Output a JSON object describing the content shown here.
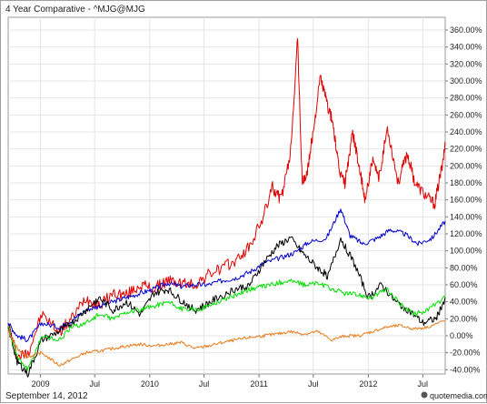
{
  "chart_data": {
    "type": "line",
    "title": "4 Year Comparative - ^MJG@MJG",
    "date_footer": "September 14, 2012",
    "branding": "quotemedia.com",
    "xlabel": "",
    "ylabel": "",
    "x_ticks": [
      "2009",
      "Jul",
      "2010",
      "Jul",
      "2011",
      "Jul",
      "2012",
      "Jul"
    ],
    "y_ticks": [
      "360.00%",
      "340.00%",
      "320.00%",
      "300.00%",
      "280.00%",
      "260.00%",
      "240.00%",
      "220.00%",
      "200.00%",
      "180.00%",
      "160.00%",
      "140.00%",
      "120.00%",
      "100.00%",
      "80.00%",
      "60.00%",
      "40.00%",
      "20.00%",
      "0.00%",
      "-20.00%",
      "-40.00%"
    ],
    "ylim": [
      -45,
      375
    ],
    "xlim": [
      "2008-09-15",
      "2012-09-14"
    ],
    "grid": true,
    "series": [
      {
        "color": "#e00000",
        "x": [
          "2008-09-15",
          "2008-10-15",
          "2008-11-20",
          "2009-01-05",
          "2009-03-05",
          "2009-04-15",
          "2009-06-01",
          "2009-07-15",
          "2009-09-01",
          "2009-10-15",
          "2009-12-01",
          "2010-01-15",
          "2010-03-01",
          "2010-04-15",
          "2010-06-01",
          "2010-07-15",
          "2010-09-01",
          "2010-10-15",
          "2010-12-01",
          "2011-01-15",
          "2011-02-15",
          "2011-03-15",
          "2011-04-15",
          "2011-05-10",
          "2011-05-25",
          "2011-06-10",
          "2011-07-01",
          "2011-07-25",
          "2011-08-15",
          "2011-09-05",
          "2011-09-25",
          "2011-10-15",
          "2011-11-10",
          "2011-12-01",
          "2011-12-20",
          "2012-01-15",
          "2012-02-05",
          "2012-03-05",
          "2012-04-10",
          "2012-05-10",
          "2012-06-05",
          "2012-07-10",
          "2012-08-10",
          "2012-09-01",
          "2012-09-14"
        ],
        "y": [
          15,
          -25,
          -20,
          25,
          5,
          20,
          45,
          35,
          50,
          48,
          60,
          55,
          65,
          62,
          60,
          72,
          80,
          88,
          105,
          140,
          175,
          160,
          210,
          350,
          180,
          190,
          240,
          305,
          275,
          250,
          195,
          180,
          240,
          200,
          160,
          205,
          185,
          245,
          180,
          215,
          180,
          165,
          155,
          195,
          225
        ]
      },
      {
        "color": "#0000cc",
        "x": [
          "2008-09-15",
          "2008-10-15",
          "2008-11-20",
          "2009-01-05",
          "2009-03-05",
          "2009-04-15",
          "2009-06-01",
          "2009-07-15",
          "2009-09-01",
          "2009-10-15",
          "2009-12-01",
          "2010-01-15",
          "2010-03-01",
          "2010-04-15",
          "2010-06-01",
          "2010-07-15",
          "2010-09-01",
          "2010-10-15",
          "2010-12-01",
          "2011-01-15",
          "2011-03-15",
          "2011-05-01",
          "2011-06-15",
          "2011-08-15",
          "2011-10-01",
          "2011-11-01",
          "2011-12-15",
          "2012-02-01",
          "2012-03-15",
          "2012-05-01",
          "2012-06-15",
          "2012-08-01",
          "2012-09-14"
        ],
        "y": [
          15,
          0,
          -5,
          15,
          10,
          18,
          30,
          35,
          40,
          45,
          50,
          55,
          62,
          58,
          60,
          60,
          65,
          68,
          75,
          85,
          92,
          98,
          110,
          115,
          150,
          118,
          108,
          115,
          125,
          120,
          108,
          115,
          135
        ]
      },
      {
        "color": "#000000",
        "x": [
          "2008-09-15",
          "2008-10-15",
          "2008-11-20",
          "2009-01-05",
          "2009-03-05",
          "2009-04-15",
          "2009-06-01",
          "2009-07-15",
          "2009-09-01",
          "2009-10-15",
          "2009-12-01",
          "2010-01-15",
          "2010-03-01",
          "2010-04-15",
          "2010-06-01",
          "2010-07-15",
          "2010-09-01",
          "2010-10-15",
          "2010-12-01",
          "2011-01-15",
          "2011-03-01",
          "2011-04-15",
          "2011-06-01",
          "2011-07-15",
          "2011-08-20",
          "2011-10-01",
          "2011-11-15",
          "2012-01-01",
          "2012-02-15",
          "2012-04-01",
          "2012-05-15",
          "2012-07-01",
          "2012-08-15",
          "2012-09-14"
        ],
        "y": [
          10,
          -30,
          -45,
          -5,
          5,
          15,
          30,
          45,
          30,
          40,
          25,
          50,
          55,
          42,
          30,
          38,
          48,
          55,
          60,
          85,
          105,
          115,
          95,
          80,
          70,
          115,
          85,
          45,
          60,
          40,
          30,
          15,
          20,
          45
        ]
      },
      {
        "color": "#00dd00",
        "x": [
          "2008-09-15",
          "2008-10-15",
          "2008-11-20",
          "2009-01-05",
          "2009-03-05",
          "2009-04-15",
          "2009-06-01",
          "2009-07-15",
          "2009-09-01",
          "2009-10-15",
          "2009-12-01",
          "2010-01-15",
          "2010-03-01",
          "2010-04-15",
          "2010-06-01",
          "2010-07-15",
          "2010-09-01",
          "2010-10-15",
          "2010-12-01",
          "2011-01-15",
          "2011-03-01",
          "2011-04-15",
          "2011-06-01",
          "2011-07-15",
          "2011-09-01",
          "2011-10-15",
          "2011-12-01",
          "2012-01-15",
          "2012-03-01",
          "2012-04-15",
          "2012-06-01",
          "2012-07-15",
          "2012-09-14"
        ],
        "y": [
          12,
          -25,
          -40,
          0,
          -5,
          10,
          15,
          25,
          20,
          28,
          30,
          35,
          40,
          32,
          30,
          35,
          42,
          48,
          55,
          58,
          62,
          65,
          60,
          62,
          55,
          50,
          48,
          45,
          55,
          38,
          25,
          30,
          45
        ]
      },
      {
        "color": "#e87a1a",
        "x": [
          "2008-09-15",
          "2008-10-15",
          "2008-11-20",
          "2009-01-05",
          "2009-03-05",
          "2009-04-15",
          "2009-06-01",
          "2009-07-15",
          "2009-09-01",
          "2009-10-15",
          "2009-12-01",
          "2010-01-15",
          "2010-03-01",
          "2010-04-15",
          "2010-06-01",
          "2010-07-15",
          "2010-09-01",
          "2010-10-15",
          "2010-12-01",
          "2011-01-15",
          "2011-03-01",
          "2011-04-15",
          "2011-06-01",
          "2011-07-15",
          "2011-09-01",
          "2011-10-15",
          "2011-12-01",
          "2012-01-15",
          "2012-03-01",
          "2012-04-15",
          "2012-06-01",
          "2012-07-15",
          "2012-09-14"
        ],
        "y": [
          5,
          -15,
          -25,
          -20,
          -35,
          -28,
          -20,
          -18,
          -15,
          -12,
          -10,
          -12,
          -10,
          -8,
          -15,
          -12,
          -8,
          -5,
          -2,
          0,
          2,
          5,
          2,
          5,
          -5,
          0,
          0,
          5,
          10,
          12,
          8,
          10,
          18
        ]
      }
    ]
  }
}
